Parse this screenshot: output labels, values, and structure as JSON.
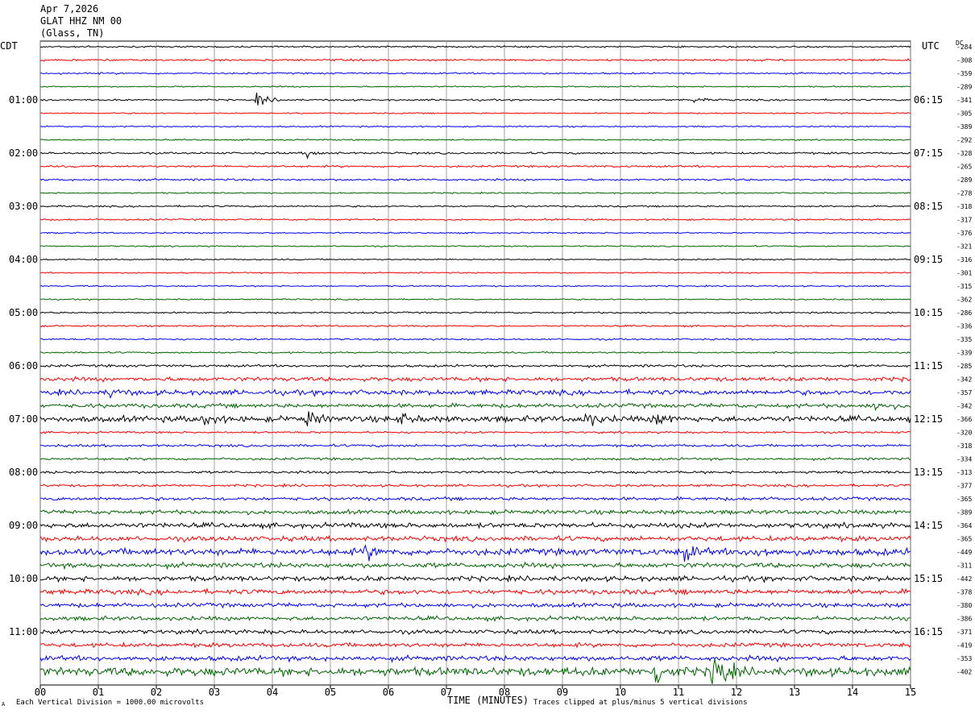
{
  "header": {
    "date": "Apr 7,2026",
    "station": "GLAT HHZ NM 00",
    "location": "(Glass, TN)"
  },
  "left_tz": "CDT",
  "right_tz": "UTC",
  "dc_label": "DC",
  "footer": {
    "scale_note": "Each Vertical Division = 1000.00 microvolts",
    "clip_note": "Traces clipped at plus/minus 5 vertical divisions",
    "mark": "A"
  },
  "chart_data": {
    "type": "line",
    "title": "",
    "xlabel": "TIME (MINUTES)",
    "ylabel": "",
    "xlim": [
      0,
      15
    ],
    "x_ticks": [
      "00",
      "01",
      "02",
      "03",
      "04",
      "05",
      "06",
      "07",
      "08",
      "09",
      "10",
      "11",
      "12",
      "13",
      "14",
      "15"
    ],
    "grid": true,
    "trace_colors": [
      "#000000",
      "#ff0000",
      "#0000ff",
      "#006400"
    ],
    "left_hour_labels": [
      "01:00",
      "02:00",
      "03:00",
      "04:00",
      "05:00",
      "06:00",
      "07:00",
      "08:00",
      "09:00",
      "10:00",
      "11:00"
    ],
    "right_hour_labels": [
      "06:15",
      "07:15",
      "08:15",
      "09:15",
      "10:15",
      "11:15",
      "12:15",
      "13:15",
      "14:15",
      "15:15",
      "16:15"
    ],
    "dc_offsets": [
      -284,
      -308,
      -359,
      -289,
      -341,
      -305,
      -389,
      -292,
      -328,
      -265,
      -289,
      -278,
      -318,
      -317,
      -376,
      -321,
      -316,
      -301,
      -315,
      -362,
      -286,
      -336,
      -335,
      -339,
      -285,
      -342,
      -357,
      -342,
      -366,
      -320,
      -318,
      -334,
      -313,
      -377,
      -365,
      -389,
      -364,
      -365,
      -449,
      -311,
      -442,
      -378,
      -380,
      -386,
      -371,
      -419,
      -353,
      -402
    ],
    "trace_amplitude_divs": [
      0.1,
      0.12,
      0.1,
      0.08,
      0.1,
      0.08,
      0.08,
      0.08,
      0.12,
      0.12,
      0.12,
      0.08,
      0.1,
      0.1,
      0.08,
      0.08,
      0.08,
      0.08,
      0.08,
      0.08,
      0.1,
      0.1,
      0.1,
      0.1,
      0.15,
      0.25,
      0.3,
      0.25,
      0.35,
      0.12,
      0.15,
      0.15,
      0.15,
      0.15,
      0.2,
      0.25,
      0.3,
      0.3,
      0.4,
      0.3,
      0.3,
      0.3,
      0.25,
      0.25,
      0.25,
      0.25,
      0.3,
      0.5
    ],
    "events": [
      {
        "trace": 4,
        "minute": 3.75,
        "amplitude_divs": 0.9
      },
      {
        "trace": 4,
        "minute": 11.25,
        "amplitude_divs": 0.3
      },
      {
        "trace": 8,
        "minute": 4.6,
        "amplitude_divs": 0.6
      },
      {
        "trace": 26,
        "minute": 1.2,
        "amplitude_divs": 0.5
      },
      {
        "trace": 27,
        "minute": 14.4,
        "amplitude_divs": 0.8
      },
      {
        "trace": 28,
        "minute": 2.8,
        "amplitude_divs": 1.0
      },
      {
        "trace": 28,
        "minute": 4.6,
        "amplitude_divs": 1.0
      },
      {
        "trace": 28,
        "minute": 6.2,
        "amplitude_divs": 0.8
      },
      {
        "trace": 28,
        "minute": 9.4,
        "amplitude_divs": 1.1
      },
      {
        "trace": 28,
        "minute": 10.6,
        "amplitude_divs": 1.0
      },
      {
        "trace": 38,
        "minute": 5.6,
        "amplitude_divs": 0.9
      },
      {
        "trace": 38,
        "minute": 11.1,
        "amplitude_divs": 1.1
      },
      {
        "trace": 38,
        "minute": 12.3,
        "amplitude_divs": 1.0
      },
      {
        "trace": 47,
        "minute": 10.6,
        "amplitude_divs": 2.0
      },
      {
        "trace": 47,
        "minute": 11.6,
        "amplitude_divs": 3.2
      }
    ]
  }
}
